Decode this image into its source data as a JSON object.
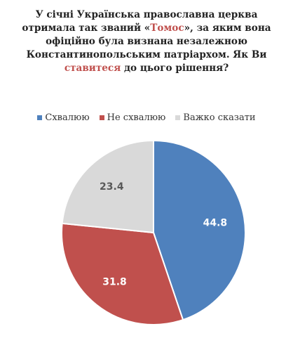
{
  "title": {
    "line1": "У січні Українська православна церква",
    "line2_a": "отримала так званий «",
    "line2_accent": "Томос",
    "line2_b": "», за яким вона",
    "line3": "офіційно була визнана незалежною",
    "line4": "Константинопольським патріархом. Як Ви",
    "line5_accent": "ставитеся",
    "line5_b": " до цього рішення?"
  },
  "colors": {
    "approve": "#4f81bd",
    "disapprove": "#c0504d",
    "hard_to_say": "#d9d9d9",
    "accent": "#c0504d"
  },
  "chart_data": {
    "type": "pie",
    "categories": [
      "Схвалюю",
      "Не схвалюю",
      "Важко сказати"
    ],
    "values": [
      44.8,
      31.8,
      23.4
    ],
    "legend": "top",
    "start_angle": "12 o'clock",
    "direction": "clockwise"
  }
}
